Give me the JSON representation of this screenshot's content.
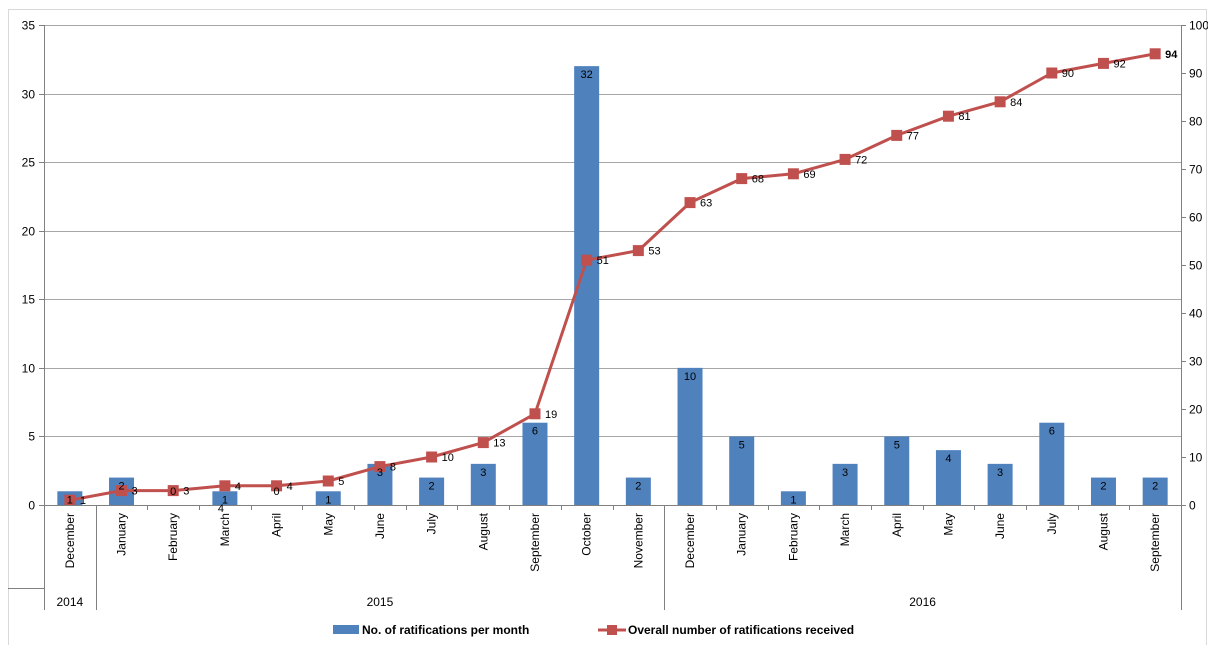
{
  "chart_data": {
    "type": "bar",
    "categories": [
      "December",
      "January",
      "February",
      "March",
      "April",
      "May",
      "June",
      "July",
      "August",
      "September",
      "October",
      "November",
      "December",
      "January",
      "February",
      "March",
      "April",
      "May",
      "June",
      "July",
      "August",
      "September"
    ],
    "year_groups": [
      {
        "label": "2014",
        "start": 0,
        "end": 0
      },
      {
        "label": "2015",
        "start": 1,
        "end": 11
      },
      {
        "label": "2016",
        "start": 12,
        "end": 21
      }
    ],
    "series": [
      {
        "name": "No. of ratifications per month",
        "type": "bar",
        "axis": "left",
        "color": "#4F81BD",
        "values": [
          1,
          2,
          0,
          1,
          0,
          1,
          3,
          2,
          3,
          6,
          32,
          2,
          10,
          5,
          1,
          3,
          5,
          4,
          3,
          6,
          2,
          2
        ],
        "labels": [
          "1",
          "2",
          "0",
          "1",
          "0",
          "1",
          "3",
          "2",
          "3",
          "6",
          "32",
          "2",
          "10",
          "5",
          "1",
          "3",
          "5",
          "4",
          "3",
          "6",
          "2",
          "2"
        ]
      },
      {
        "name": "Overall number of ratifications received",
        "type": "line",
        "axis": "right",
        "color": "#C0504D",
        "values": [
          1,
          3,
          3,
          4,
          4,
          5,
          8,
          10,
          13,
          19,
          51,
          53,
          63,
          68,
          69,
          72,
          77,
          81,
          84,
          90,
          92,
          94
        ],
        "labels": [
          "1",
          "3",
          "3",
          "4",
          "4",
          "5",
          "8",
          "10",
          "13",
          "19",
          "51",
          "53",
          "63",
          "68",
          "69",
          "72",
          "77",
          "81",
          "84",
          "90",
          "92",
          "94"
        ]
      }
    ],
    "extra_label": "4",
    "left_axis": {
      "min": 0,
      "max": 35,
      "ticks": [
        "0",
        "5",
        "10",
        "15",
        "20",
        "25",
        "30",
        "35"
      ]
    },
    "right_axis": {
      "min": 0,
      "max": 100,
      "ticks": [
        "0",
        "10",
        "20",
        "30",
        "40",
        "50",
        "60",
        "70",
        "80",
        "90",
        "100"
      ]
    },
    "grid": true,
    "legend_position": "bottom"
  }
}
